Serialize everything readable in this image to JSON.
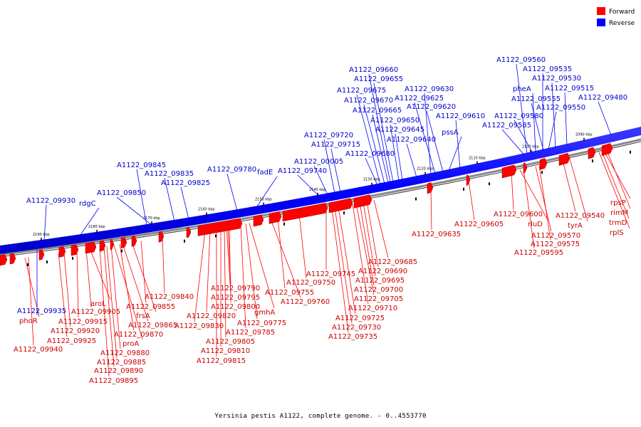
{
  "legend": {
    "forward_label": "Forward",
    "reverse_label": "Reverse",
    "forward_color": "#ff0000",
    "reverse_color": "#0000ff"
  },
  "caption": "Yersinia pestis A1122, complete genome. - 0..4553770",
  "ticks": [
    "2090 kbp",
    "2100 kbp",
    "2110 kbp",
    "2120 kbp",
    "2130 kbp",
    "2140 kbp",
    "2150 kbp",
    "2160 kbp",
    "2170 kbp",
    "2180 kbp",
    "2190 kbp"
  ],
  "reverse_labels": [
    "A1122_09560",
    "A1122_09535",
    "A1122_09530",
    "A1122_09515",
    "A1122_09480",
    "pheA",
    "A1122_09555",
    "A1122_09550",
    "A1122_09580",
    "A1122_09585",
    "A1122_09660",
    "A1122_09655",
    "A1122_09675",
    "A1122_09630",
    "A1122_09670",
    "A1122_09625",
    "A1122_09665",
    "A1122_09620",
    "A1122_09610",
    "A1122_09650",
    "A1122_09645",
    "A1122_09640",
    "pssA",
    "A1122_09720",
    "A1122_09715",
    "A1122_09680",
    "A1122_00005",
    "A1122_09740",
    "A1122_09780",
    "fadE",
    "A1122_09845",
    "A1122_09835",
    "A1122_09825",
    "A1122_09850",
    "A1122_09930",
    "rdgC",
    "A1122_09935"
  ],
  "forward_labels": [
    "A1122_09600",
    "rluD",
    "A1122_09540",
    "tyrA",
    "A1122_09570",
    "A1122_09575",
    "A1122_09595",
    "rpsP",
    "rimM",
    "trmD",
    "rplS",
    "A1122_09605",
    "A1122_09635",
    "A1122_09685",
    "A1122_09690",
    "A1122_09695",
    "A1122_09700",
    "A1122_09705",
    "A1122_09710",
    "A1122_09725",
    "A1122_09730",
    "A1122_09735",
    "A1122_09745",
    "A1122_09750",
    "A1122_09755",
    "A1122_09760",
    "A1122_09790",
    "A1122_09795",
    "A1122_09800",
    "gmhA",
    "A1122_09775",
    "A1122_09785",
    "A1122_09805",
    "A1122_09810",
    "A1122_09815",
    "A1122_09820",
    "A1122_09830",
    "A1122_09840",
    "A1122_09855",
    "frsA",
    "A1122_09865",
    "A1122_09870",
    "proA",
    "A1122_09880",
    "A1122_09885",
    "A1122_09890",
    "A1122_09895",
    "aroL",
    "A1122_09905",
    "A1122_09915",
    "A1122_09920",
    "A1122_09925",
    "phoR",
    "A1122_09940"
  ]
}
